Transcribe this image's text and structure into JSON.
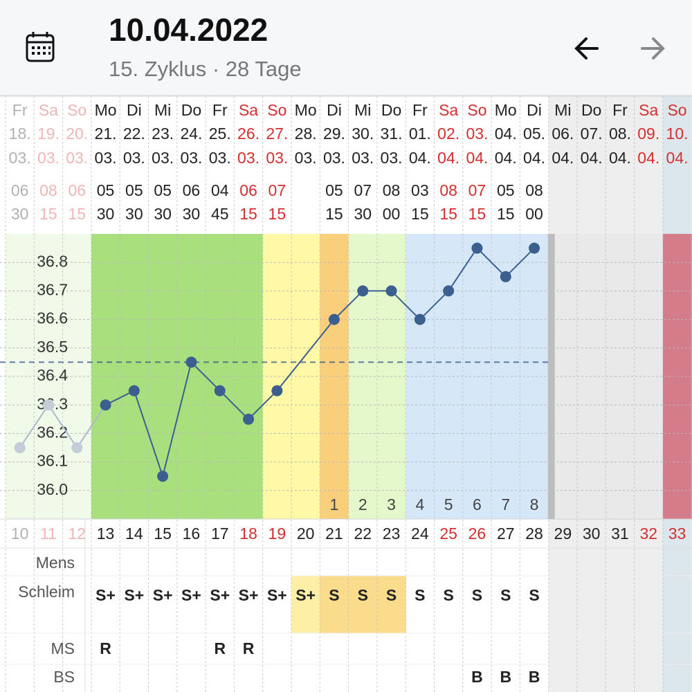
{
  "header": {
    "title": "10.04.2022",
    "subtitle": "15. Zyklus · 28 Tage"
  },
  "chart_data": {
    "type": "line",
    "categories": [
      10,
      11,
      12,
      13,
      14,
      15,
      16,
      17,
      18,
      19,
      20,
      21,
      22,
      23,
      24,
      25,
      26,
      27,
      28,
      29,
      30,
      31,
      32,
      33
    ],
    "weekdays": [
      "Fr",
      "Sa",
      "So",
      "Mo",
      "Di",
      "Mi",
      "Do",
      "Fr",
      "Sa",
      "So",
      "Mo",
      "Di",
      "Mi",
      "Do",
      "Fr",
      "Sa",
      "So",
      "Mo",
      "Di",
      "Mi",
      "Do",
      "Fr",
      "Sa",
      "So"
    ],
    "days": [
      "18.",
      "19.",
      "20.",
      "21.",
      "22.",
      "23.",
      "24.",
      "25.",
      "26.",
      "27.",
      "28.",
      "29.",
      "30.",
      "31.",
      "01.",
      "02.",
      "03.",
      "04.",
      "05.",
      "06.",
      "07.",
      "08.",
      "09.",
      "10."
    ],
    "months": [
      "03.",
      "03.",
      "03.",
      "03.",
      "03.",
      "03.",
      "03.",
      "03.",
      "03.",
      "03.",
      "03.",
      "03.",
      "03.",
      "03.",
      "04.",
      "04.",
      "04.",
      "04.",
      "04.",
      "04.",
      "04.",
      "04.",
      "04.",
      "04."
    ],
    "weekend": [
      false,
      true,
      true,
      false,
      false,
      false,
      false,
      false,
      true,
      true,
      false,
      false,
      false,
      false,
      false,
      true,
      true,
      false,
      false,
      false,
      false,
      false,
      true,
      true
    ],
    "times": [
      [
        "06",
        "30"
      ],
      [
        "08",
        "15"
      ],
      [
        "06",
        "15"
      ],
      [
        "05",
        "30"
      ],
      [
        "05",
        "30"
      ],
      [
        "05",
        "30"
      ],
      [
        "06",
        "30"
      ],
      [
        "04",
        "45"
      ],
      [
        "06",
        "15"
      ],
      [
        "07",
        "15"
      ],
      null,
      [
        "05",
        "15"
      ],
      [
        "07",
        "30"
      ],
      [
        "08",
        "00"
      ],
      [
        "03",
        "15"
      ],
      [
        "08",
        "15"
      ],
      [
        "07",
        "15"
      ],
      [
        "05",
        "15"
      ],
      [
        "08",
        "00"
      ],
      null,
      null,
      null,
      null,
      null
    ],
    "values": [
      36.15,
      36.3,
      36.15,
      36.3,
      36.35,
      36.05,
      36.45,
      36.35,
      36.25,
      36.35,
      null,
      36.6,
      36.7,
      36.7,
      36.6,
      36.7,
      36.85,
      36.75,
      36.85,
      null,
      null,
      null,
      null,
      null
    ],
    "post_ovulation_days": [
      null,
      null,
      null,
      null,
      null,
      null,
      null,
      null,
      null,
      null,
      null,
      1,
      2,
      3,
      4,
      5,
      6,
      7,
      8,
      null,
      null,
      null,
      null,
      null
    ],
    "color": "#3b5f8f",
    "coverline": 36.45,
    "ylim": [
      35.9,
      36.9
    ],
    "yticks": [
      {
        "value": 36,
        "label": "36.0"
      },
      36.1,
      36.2,
      36.3,
      36.4,
      36.5,
      36.6,
      36.7,
      36.8
    ],
    "grid": true,
    "faded_columns": 3,
    "weekend_color": "#d32f2f",
    "column_colors": [
      "#f1f9e9",
      "#f1f9e9",
      "#f1f9e9",
      "#a9e07d",
      "#a9e07d",
      "#a9e07d",
      "#a9e07d",
      "#a9e07d",
      "#a9e07d",
      "#fff8a6",
      "#fff8a6",
      "#f9cf7c",
      "#e5f8cb",
      "#e5f8cb",
      "#d6e7f8",
      "#d6e7f8",
      "#d6e7f8",
      "#d6e7f8",
      "#d6e7f8",
      "#e9e9e9",
      "#e9e9e9",
      "#e9e9e9",
      "#e9e9e9",
      "#d57c8b"
    ],
    "header_colors": [
      "#ffffff",
      "#ffffff",
      "#ffffff",
      "#ffffff",
      "#ffffff",
      "#ffffff",
      "#ffffff",
      "#ffffff",
      "#ffffff",
      "#ffffff",
      "#ffffff",
      "#ffffff",
      "#ffffff",
      "#ffffff",
      "#ffffff",
      "#ffffff",
      "#ffffff",
      "#ffffff",
      "#ffffff",
      "#eeeeee",
      "#eeeeee",
      "#eeeeee",
      "#eeeeee",
      "#dce7ed"
    ]
  },
  "symptoms": {
    "rows": [
      {
        "label": "Mens",
        "values": [
          null,
          null,
          null,
          null,
          null,
          null,
          null,
          null,
          null,
          null,
          null,
          null,
          null,
          null,
          null,
          null,
          null,
          null,
          null,
          null,
          null,
          null,
          null,
          null
        ]
      },
      {
        "label": "Schleim",
        "values": [
          null,
          null,
          null,
          "S+",
          "S+",
          "S+",
          "S+",
          "S+",
          "S+",
          "S+",
          "S+",
          "S",
          "S",
          "S",
          "S",
          "S",
          "S",
          "S",
          "S",
          null,
          null,
          null,
          null,
          null
        ],
        "highlights": [
          null,
          null,
          null,
          null,
          null,
          null,
          null,
          null,
          null,
          null,
          "#fdf0a6",
          "#fbdc8c",
          "#fbdc8c",
          "#fbdc8c",
          null,
          null,
          null,
          null,
          null,
          null,
          null,
          null,
          null,
          null
        ]
      },
      {
        "label": "MS",
        "values": [
          null,
          null,
          null,
          "R",
          null,
          null,
          null,
          "R",
          "R",
          null,
          null,
          null,
          null,
          null,
          null,
          null,
          null,
          null,
          null,
          null,
          null,
          null,
          null,
          null
        ]
      },
      {
        "label": "BS",
        "values": [
          null,
          null,
          null,
          null,
          null,
          null,
          null,
          null,
          null,
          null,
          null,
          null,
          null,
          null,
          null,
          null,
          "B",
          "B",
          "B",
          null,
          null,
          null,
          null,
          null
        ]
      }
    ]
  }
}
